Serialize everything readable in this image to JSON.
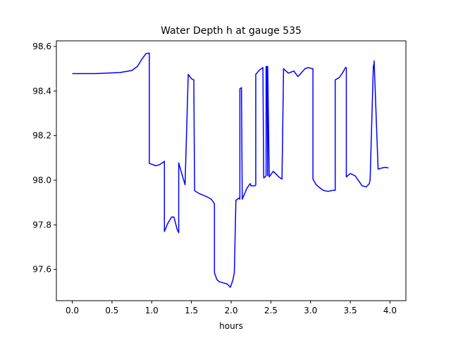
{
  "chart_data": {
    "type": "line",
    "title": "Water Depth h at gauge 535",
    "xlabel": "hours",
    "ylabel": "",
    "xlim": [
      -0.2,
      4.2
    ],
    "ylim": [
      97.46,
      98.625
    ],
    "xticks": [
      0.0,
      0.5,
      1.0,
      1.5,
      2.0,
      2.5,
      3.0,
      3.5,
      4.0
    ],
    "xtick_labels": [
      "0.0",
      "0.5",
      "1.0",
      "1.5",
      "2.0",
      "2.5",
      "3.0",
      "3.5",
      "4.0"
    ],
    "yticks": [
      97.6,
      97.8,
      98.0,
      98.2,
      98.4,
      98.6
    ],
    "ytick_labels": [
      "97.6",
      "97.8",
      "98.0",
      "98.2",
      "98.4",
      "98.6"
    ],
    "grid": false,
    "series": [
      {
        "color": "#0000ff",
        "x": [
          0.0,
          0.3,
          0.6,
          0.75,
          0.82,
          0.88,
          0.93,
          0.97,
          0.97,
          1.0,
          1.05,
          1.1,
          1.15,
          1.16,
          1.16,
          1.2,
          1.25,
          1.28,
          1.32,
          1.34,
          1.34,
          1.37,
          1.42,
          1.46,
          1.46,
          1.5,
          1.53,
          1.53,
          1.54,
          1.54,
          1.6,
          1.7,
          1.75,
          1.78,
          1.79,
          1.79,
          1.82,
          1.85,
          1.9,
          1.95,
          1.99,
          2.02,
          2.04,
          2.04,
          2.06,
          2.1,
          2.11,
          2.11,
          2.13,
          2.13,
          2.14,
          2.2,
          2.24,
          2.25,
          2.3,
          2.31,
          2.31,
          2.36,
          2.4,
          2.4,
          2.41,
          2.44,
          2.44,
          2.45,
          2.46,
          2.46,
          2.48,
          2.53,
          2.6,
          2.64,
          2.64,
          2.66,
          2.72,
          2.79,
          2.84,
          2.88,
          2.93,
          2.97,
          3.02,
          3.03,
          3.03,
          3.07,
          3.12,
          3.16,
          3.22,
          3.28,
          3.31,
          3.31,
          3.36,
          3.4,
          3.44,
          3.45,
          3.45,
          3.5,
          3.56,
          3.6,
          3.65,
          3.7,
          3.74,
          3.75,
          3.75,
          3.79,
          3.8,
          3.8,
          3.85,
          3.9,
          3.94,
          3.98
        ],
        "y": [
          98.478,
          98.478,
          98.483,
          98.492,
          98.51,
          98.545,
          98.568,
          98.57,
          98.075,
          98.072,
          98.065,
          98.07,
          98.082,
          98.085,
          97.77,
          97.805,
          97.835,
          97.835,
          97.78,
          97.765,
          98.078,
          98.04,
          97.98,
          98.475,
          98.475,
          98.455,
          98.45,
          98.45,
          97.953,
          97.953,
          97.94,
          97.925,
          97.915,
          97.9,
          97.895,
          97.585,
          97.555,
          97.545,
          97.54,
          97.535,
          97.52,
          97.55,
          97.585,
          97.585,
          97.91,
          97.92,
          97.915,
          98.41,
          98.415,
          98.415,
          97.915,
          97.965,
          97.985,
          97.975,
          97.975,
          97.98,
          98.475,
          98.495,
          98.505,
          98.505,
          98.01,
          98.02,
          98.51,
          98.51,
          98.02,
          98.51,
          98.015,
          98.04,
          98.015,
          98.005,
          98.005,
          98.5,
          98.48,
          98.49,
          98.465,
          98.48,
          98.5,
          98.505,
          98.5,
          98.5,
          98.005,
          97.98,
          97.965,
          97.955,
          97.95,
          97.955,
          97.955,
          98.45,
          98.46,
          98.48,
          98.505,
          98.505,
          98.015,
          98.03,
          98.02,
          98.0,
          97.975,
          97.97,
          97.985,
          98.005,
          98.005,
          98.51,
          98.525,
          98.535,
          98.05,
          98.055,
          98.058,
          98.055
        ]
      }
    ]
  }
}
